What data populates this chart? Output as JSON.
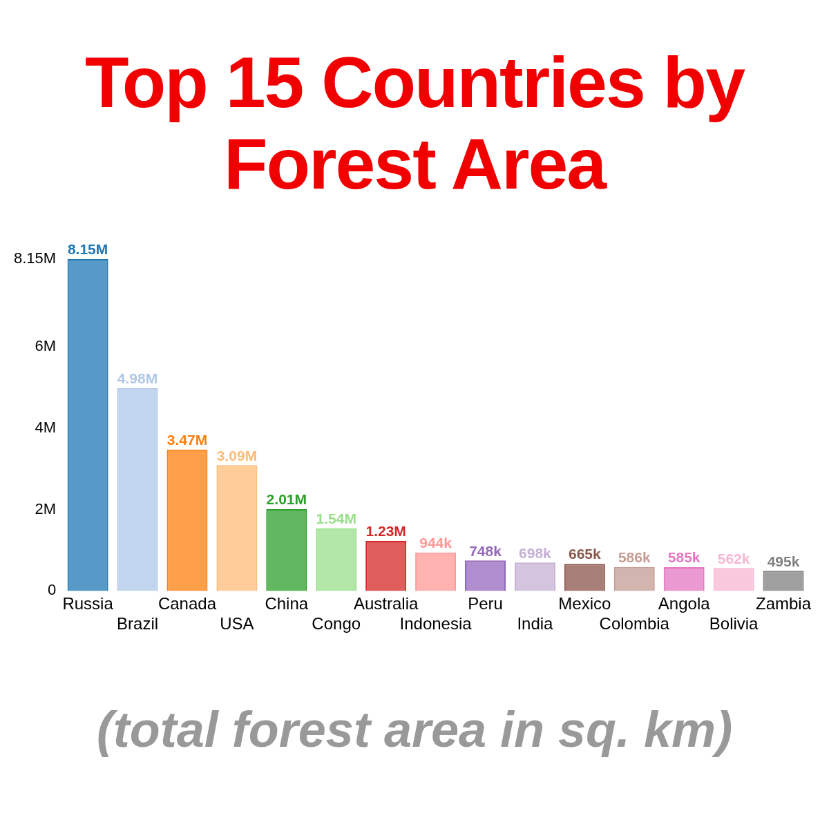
{
  "chart_data": {
    "type": "bar",
    "title": "Top 15 Countries by Forest Area",
    "subtitle": "(total forest area in sq. km)",
    "categories": [
      "Russia",
      "Brazil",
      "Canada",
      "USA",
      "China",
      "Congo",
      "Australia",
      "Indonesia",
      "Peru",
      "India",
      "Mexico",
      "Colombia",
      "Angola",
      "Bolivia",
      "Zambia"
    ],
    "values": [
      8150000,
      4980000,
      3470000,
      3090000,
      2010000,
      1540000,
      1230000,
      944000,
      748000,
      698000,
      665000,
      586000,
      585000,
      562000,
      495000
    ],
    "value_labels": [
      "8.15M",
      "4.98M",
      "3.47M",
      "3.09M",
      "2.01M",
      "1.54M",
      "1.23M",
      "944k",
      "748k",
      "698k",
      "665k",
      "586k",
      "585k",
      "562k",
      "495k"
    ],
    "colors": [
      "#1f77b4",
      "#aec7e8",
      "#ff7f0e",
      "#ffbb78",
      "#2ca02c",
      "#98df8a",
      "#d62728",
      "#ff9896",
      "#9467bd",
      "#c5b0d5",
      "#8c564b",
      "#c49c94",
      "#e377c2",
      "#f7b6d2",
      "#7f7f7f"
    ],
    "ylim": [
      0,
      8150000
    ],
    "yticks": [
      0,
      {
        "value": 2000000,
        "label": "2M"
      },
      {
        "value": 4000000,
        "label": "4M"
      },
      {
        "value": 6000000,
        "label": "6M"
      },
      {
        "value": 8150000,
        "label": "8.15M"
      }
    ],
    "grid": false,
    "legend": false
  }
}
